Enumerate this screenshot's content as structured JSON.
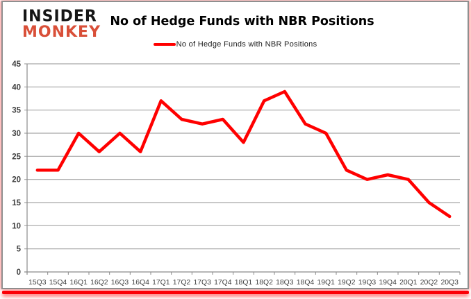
{
  "logo": {
    "line1": "INSIDER",
    "line2": "MONKEY"
  },
  "header": {
    "title": "No of Hedge Funds with NBR Positions"
  },
  "legend": {
    "label": "No of Hedge Funds with NBR Positions",
    "line_color": "#ff0000"
  },
  "colors": {
    "series_red": "#ff0000",
    "logo_red": "#d94f38",
    "gridline": "#a6a6a6",
    "axis": "#8a8a8a",
    "tick_text": "#3f3f3f",
    "bottom_bar_red": "#fb0007",
    "card_border": "#8f8f8f"
  },
  "chart_data": {
    "type": "line",
    "title": "No of Hedge Funds with NBR Positions",
    "xlabel": "",
    "ylabel": "",
    "categories": [
      "15Q3",
      "15Q4",
      "16Q1",
      "16Q2",
      "16Q3",
      "16Q4",
      "17Q1",
      "17Q2",
      "17Q3",
      "17Q4",
      "18Q1",
      "18Q2",
      "18Q3",
      "18Q4",
      "19Q1",
      "19Q2",
      "19Q3",
      "19Q4",
      "20Q1",
      "20Q2",
      "20Q3"
    ],
    "series": [
      {
        "name": "No of Hedge Funds with NBR Positions",
        "color": "#ff0000",
        "values": [
          22,
          22,
          30,
          26,
          30,
          26,
          37,
          33,
          32,
          33,
          28,
          37,
          39,
          32,
          30,
          22,
          20,
          21,
          20,
          15,
          12
        ]
      }
    ],
    "ylim": [
      0,
      45
    ],
    "yticks": [
      0,
      5,
      10,
      15,
      20,
      25,
      30,
      35,
      40,
      45
    ],
    "grid": true,
    "legend_position": "top-center"
  }
}
